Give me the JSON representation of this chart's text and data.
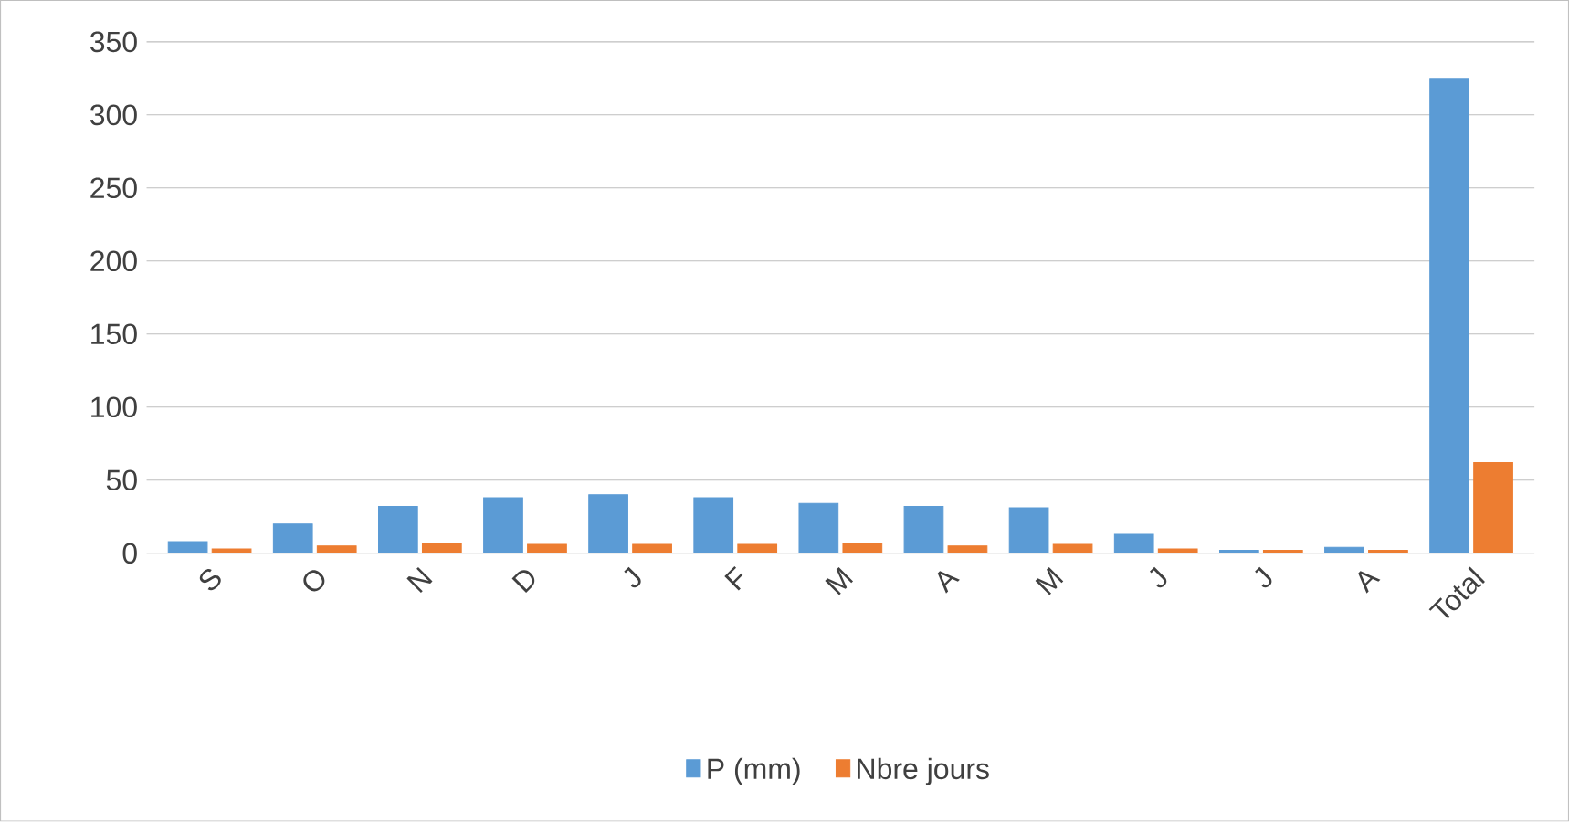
{
  "chart_data": {
    "type": "bar",
    "categories": [
      "S",
      "O",
      "N",
      "D",
      "J",
      "F",
      "M",
      "A",
      "M",
      "J",
      "J",
      "A",
      "Total"
    ],
    "series": [
      {
        "name": "P (mm)",
        "color": "#5b9bd5",
        "values": [
          8,
          20,
          32,
          38,
          40,
          38,
          34,
          32,
          31,
          13,
          2,
          4,
          325
        ]
      },
      {
        "name": "Nbre jours",
        "color": "#ed7d31",
        "values": [
          3,
          5,
          7,
          6,
          6,
          6,
          7,
          5,
          6,
          3,
          2,
          2,
          62
        ]
      }
    ],
    "ylim": [
      0,
      350
    ],
    "yticks": [
      0,
      50,
      100,
      150,
      200,
      250,
      300,
      350
    ],
    "grid": "y",
    "legend": "bottom"
  }
}
